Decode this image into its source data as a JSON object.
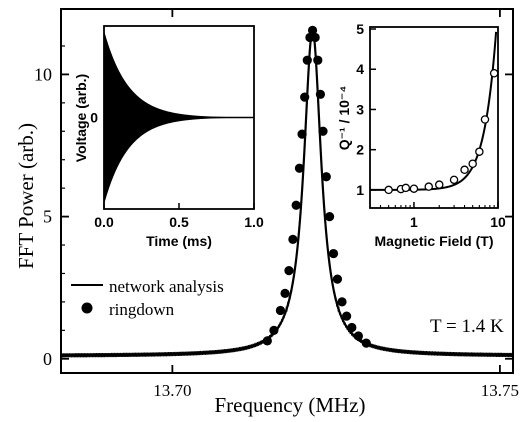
{
  "chart_data": [
    {
      "id": "main",
      "type": "line",
      "xlabel": "Frequency (MHz)",
      "ylabel": "FFT Power (arb.)",
      "xlim": [
        13.683,
        13.752
      ],
      "ylim": [
        -0.5,
        12.3
      ],
      "xticks": [
        13.7,
        13.75
      ],
      "xtick_labels": [
        "13.70",
        "13.75"
      ],
      "yticks": [
        0,
        5,
        10
      ],
      "ytick_labels": [
        "0",
        "5",
        "10"
      ],
      "series": [
        {
          "name": "network analysis",
          "style": "line",
          "lorentzian": {
            "center": 13.7214,
            "amplitude": 11.45,
            "fwhm": 0.00325,
            "offset": 0.1
          }
        },
        {
          "name": "ringdown",
          "style": "markers",
          "x": [
            13.7145,
            13.7155,
            13.7165,
            13.7172,
            13.7178,
            13.7184,
            13.7189,
            13.7194,
            13.7198,
            13.7202,
            13.7206,
            13.721,
            13.7214,
            13.7218,
            13.7222,
            13.7226,
            13.723,
            13.7235,
            13.724,
            13.7246,
            13.7252,
            13.7259,
            13.7266,
            13.7274,
            13.7284,
            13.7296
          ],
          "y": [
            0.63,
            1.0,
            1.7,
            2.3,
            3.1,
            4.2,
            5.4,
            6.7,
            7.9,
            9.2,
            10.5,
            11.3,
            11.55,
            11.3,
            10.5,
            9.3,
            8.0,
            6.4,
            5.0,
            3.7,
            2.8,
            2.0,
            1.5,
            1.1,
            0.8,
            0.55
          ]
        }
      ],
      "legend_position": "bottom-left",
      "annotation": "T = 1.4 K"
    },
    {
      "id": "inset-left",
      "type": "line",
      "xlabel": "Time (ms)",
      "ylabel": "Voltage (arb.)",
      "xlim": [
        0,
        1.0
      ],
      "ylim": [
        -1.05,
        1.05
      ],
      "xticks": [
        0.0,
        0.5,
        1.0
      ],
      "xtick_labels": [
        "0.0",
        "0.5",
        "1.0"
      ],
      "yticks": [
        0
      ],
      "ytick_labels": [
        "0"
      ],
      "series": [
        {
          "name": "",
          "style": "decaying-oscillation",
          "amplitude": 1.0,
          "decay_time_ms": 0.16
        }
      ]
    },
    {
      "id": "inset-right",
      "type": "scatter",
      "xlabel": "Magnetic Field (T)",
      "ylabel": "Q⁻¹ / 10⁻⁴",
      "xscale": "log",
      "xlim": [
        0.3,
        10
      ],
      "ylim": [
        0.55,
        5.05
      ],
      "xticks": [
        1,
        10
      ],
      "xtick_labels": [
        "1",
        "10"
      ],
      "yticks": [
        1,
        2,
        3,
        4,
        5
      ],
      "ytick_labels": [
        "1",
        "2",
        "3",
        "4",
        "5"
      ],
      "series": [
        {
          "name": "",
          "style": "open-markers",
          "x": [
            0.5,
            0.7,
            0.8,
            1.0,
            1.5,
            2.0,
            3.0,
            4.0,
            5.0,
            6.0,
            7.0,
            9.0
          ],
          "y": [
            1.0,
            1.02,
            1.05,
            1.03,
            1.08,
            1.13,
            1.25,
            1.5,
            1.65,
            1.95,
            2.75,
            3.9
          ]
        },
        {
          "name": "",
          "style": "fit-line",
          "baseline": 1.0,
          "coefficient": 0.0046,
          "power": 3
        }
      ]
    }
  ]
}
